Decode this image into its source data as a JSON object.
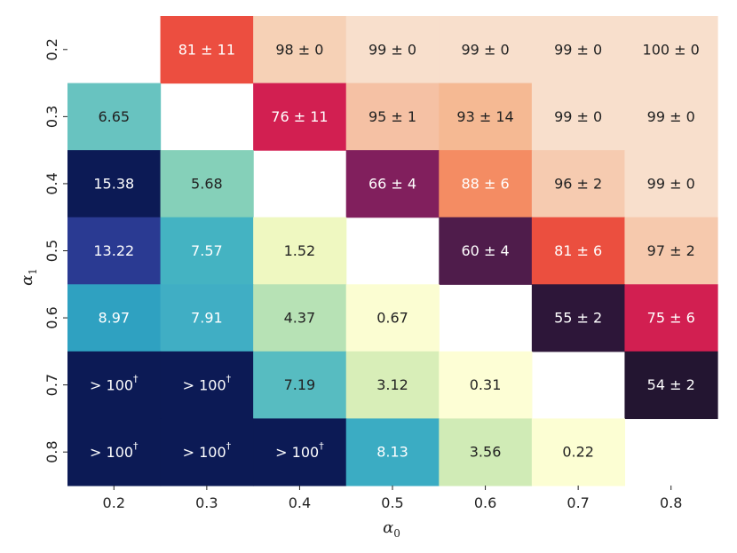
{
  "chart_data": {
    "type": "heatmap",
    "title": "",
    "xlabel": "α",
    "xlabel_subscript": "0",
    "ylabel": "α",
    "ylabel_subscript": "1",
    "x_categories": [
      "0.2",
      "0.3",
      "0.4",
      "0.5",
      "0.6",
      "0.7",
      "0.8"
    ],
    "y_categories": [
      "0.2",
      "0.3",
      "0.4",
      "0.5",
      "0.6",
      "0.7",
      "0.8"
    ],
    "cells": [
      [
        null,
        "81 ± 11",
        "98 ± 0",
        "99 ± 0",
        "99 ± 0",
        "99 ± 0",
        "100 ± 0"
      ],
      [
        "6.65",
        null,
        "76 ± 11",
        "95 ± 1",
        "93 ± 14",
        "99 ± 0",
        "99 ± 0"
      ],
      [
        "15.38",
        "5.68",
        null,
        "66 ± 4",
        "88 ± 6",
        "96 ± 2",
        "99 ± 0"
      ],
      [
        "13.22",
        "7.57",
        "1.52",
        null,
        "60 ± 4",
        "81 ± 6",
        "97 ± 2"
      ],
      [
        "8.97",
        "7.91",
        "4.37",
        "0.67",
        null,
        "55 ± 2",
        "75 ± 6"
      ],
      [
        "> 100†",
        "> 100†",
        "7.19",
        "3.12",
        "0.31",
        null,
        "54 ± 2"
      ],
      [
        "> 100†",
        "> 100†",
        "> 100†",
        "8.13",
        "3.56",
        "0.22",
        null
      ]
    ],
    "colors": [
      [
        null,
        "#ec4e40",
        "#f6d1b6",
        "#f8dfcc",
        "#f8dfcc",
        "#f8dfcc",
        "#f8dfcc"
      ],
      [
        "#68c3c0",
        null,
        "#d21f51",
        "#f5c1a4",
        "#f5b993",
        "#f8dfcc",
        "#f8dfcc"
      ],
      [
        "#0c1a55",
        "#85d0b9",
        null,
        "#811f5d",
        "#f48c63",
        "#f6cbb0",
        "#f8dfcc"
      ],
      [
        "#2a3a92",
        "#44b3c2",
        "#eff8c1",
        null,
        "#4f1c4b",
        "#eb4f3f",
        "#f6c9ad"
      ],
      [
        "#2fa1c1",
        "#40aec4",
        "#b7e2b5",
        "#fbfdd2",
        null,
        "#2d1639",
        "#d21f51"
      ],
      [
        "#0c1a55",
        "#0c1a55",
        "#57bcc1",
        "#d8eeb8",
        "#fdfed5",
        null,
        "#231531"
      ],
      [
        "#0c1a55",
        "#0c1a55",
        "#0c1a55",
        "#3bacc3",
        "#d0ebb6",
        "#fcfed3",
        null
      ]
    ],
    "text_colors": [
      [
        null,
        "#ffffff",
        "#222222",
        "#222222",
        "#222222",
        "#222222",
        "#222222"
      ],
      [
        "#222222",
        null,
        "#ffffff",
        "#222222",
        "#222222",
        "#222222",
        "#222222"
      ],
      [
        "#ffffff",
        "#222222",
        null,
        "#ffffff",
        "#ffffff",
        "#222222",
        "#222222"
      ],
      [
        "#ffffff",
        "#ffffff",
        "#222222",
        null,
        "#ffffff",
        "#ffffff",
        "#222222"
      ],
      [
        "#ffffff",
        "#ffffff",
        "#222222",
        "#222222",
        null,
        "#ffffff",
        "#ffffff"
      ],
      [
        "#ffffff",
        "#ffffff",
        "#222222",
        "#222222",
        "#222222",
        null,
        "#ffffff"
      ],
      [
        "#ffffff",
        "#ffffff",
        "#ffffff",
        "#ffffff",
        "#222222",
        "#222222",
        null
      ]
    ],
    "diagonal_empty": true,
    "legend": "none",
    "grid": false
  }
}
